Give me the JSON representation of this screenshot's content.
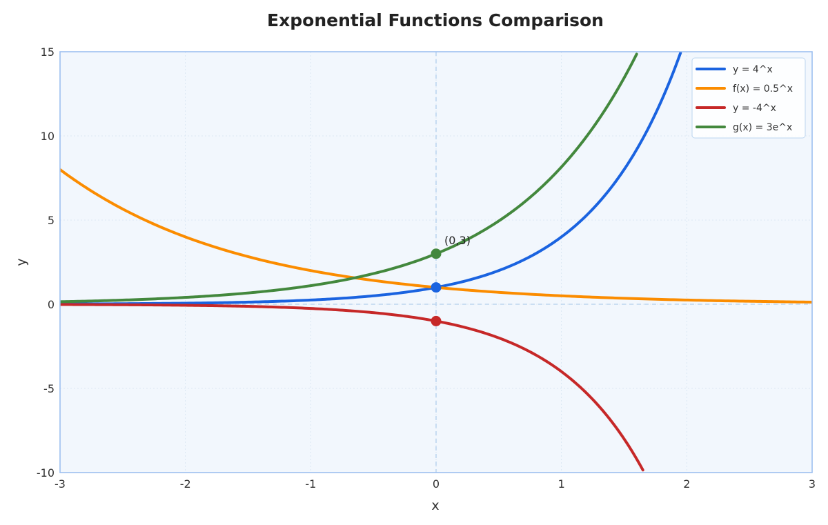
{
  "chart_data": {
    "type": "line",
    "title": "Exponential Functions Comparison",
    "xlabel": "x",
    "ylabel": "y",
    "xlim": [
      -3,
      3
    ],
    "ylim": [
      -10,
      15
    ],
    "xticks": [
      -3,
      -2,
      -1,
      0,
      1,
      2,
      3
    ],
    "yticks": [
      -10,
      -5,
      0,
      5,
      10,
      15
    ],
    "grid": true,
    "legend_position": "top-right",
    "colors": {
      "background": "#f2f7fd",
      "frame": "#9dbff0",
      "axis_line": "#bcd5ef"
    },
    "series": [
      {
        "name": "y = 4^x",
        "color": "#1a63e0",
        "x": [
          -3,
          -2.5,
          -2,
          -1.5,
          -1,
          -0.5,
          0,
          0.25,
          0.5,
          0.75,
          1,
          1.25,
          1.5,
          1.75,
          1.95
        ],
        "y": [
          0.016,
          0.031,
          0.063,
          0.125,
          0.25,
          0.5,
          1,
          1.41,
          2,
          2.83,
          4,
          5.66,
          8,
          11.31,
          14.93
        ]
      },
      {
        "name": "f(x) = 0.5^x",
        "color": "#fb8c00",
        "x": [
          -3,
          -2.5,
          -2,
          -1.5,
          -1,
          -0.5,
          0,
          0.5,
          1,
          1.5,
          2,
          2.5,
          3
        ],
        "y": [
          8,
          5.66,
          4,
          2.83,
          2,
          1.41,
          1,
          0.71,
          0.5,
          0.35,
          0.25,
          0.18,
          0.125
        ]
      },
      {
        "name": "y = -4^x",
        "color": "#c62828",
        "x": [
          -3,
          -2.5,
          -2,
          -1.5,
          -1,
          -0.5,
          0,
          0.25,
          0.5,
          0.75,
          1,
          1.25,
          1.5,
          1.65
        ],
        "y": [
          -0.016,
          -0.031,
          -0.063,
          -0.125,
          -0.25,
          -0.5,
          -1,
          -1.41,
          -2,
          -2.83,
          -4,
          -5.66,
          -8,
          -9.85
        ]
      },
      {
        "name": "g(x) = 3e^x",
        "color": "#43883d",
        "x": [
          -3,
          -2.5,
          -2,
          -1.5,
          -1,
          -0.5,
          0,
          0.25,
          0.5,
          0.75,
          1,
          1.25,
          1.5,
          1.6
        ],
        "y": [
          0.149,
          0.246,
          0.406,
          0.669,
          1.104,
          1.82,
          3,
          3.85,
          4.95,
          6.35,
          8.15,
          10.47,
          13.45,
          14.86
        ]
      }
    ],
    "points": [
      {
        "x": 0,
        "y": 3,
        "color": "#43883d"
      },
      {
        "x": 0,
        "y": 1,
        "color": "#1a63e0"
      },
      {
        "x": 0,
        "y": -1,
        "color": "#c62828"
      }
    ],
    "annotations": [
      {
        "text": "(0,3)",
        "x": 0,
        "y": 3
      }
    ]
  }
}
